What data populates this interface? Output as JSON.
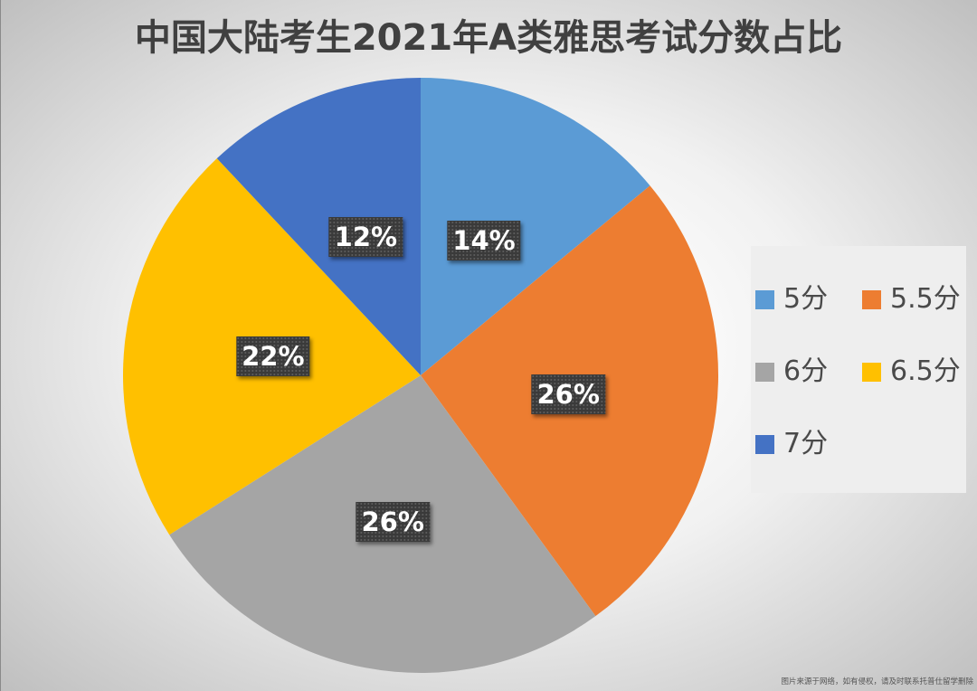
{
  "chart_data": {
    "type": "pie",
    "title": "中国大陆考生2021年A类雅思考试分数占比",
    "categories": [
      "5分",
      "5.5分",
      "6分",
      "6.5分",
      "7分"
    ],
    "values": [
      14,
      26,
      26,
      22,
      12
    ],
    "data_labels": [
      "14%",
      "26%",
      "26%",
      "22%",
      "12%"
    ],
    "colors": [
      "#5B9BD5",
      "#ED7D31",
      "#A5A5A5",
      "#FFC000",
      "#4472C4"
    ],
    "legend": "right"
  },
  "footer": {
    "note": "图片来源于网络，如有侵权，请及时联系托普仕留学删除"
  }
}
